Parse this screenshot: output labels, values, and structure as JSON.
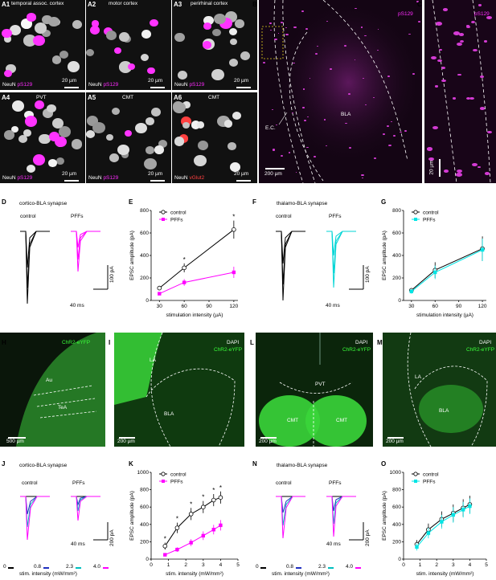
{
  "panel_letters": {
    "A1": "A1",
    "A2": "A2",
    "A3": "A3",
    "A4": "A4",
    "A5": "A5",
    "A6": "A6",
    "B": "B",
    "C": "C",
    "D": "D",
    "E": "E",
    "F": "F",
    "G": "G",
    "H": "H",
    "I": "I",
    "J": "J",
    "K": "K",
    "L": "L",
    "M": "M",
    "N": "N",
    "O": "O"
  },
  "row_a": {
    "a1_title": "temporal assoc. cortex",
    "a2_title": "motor cortex",
    "a3_title": "perirhinal cortex",
    "a4_title": "PVT",
    "a5_title": "CMT",
    "a6_title": "CMT",
    "neun": "NeuN",
    "ps129": "pS129",
    "vglut2": "vGlut2",
    "scale": "20 µm"
  },
  "panel_b": {
    "stain": "pS129",
    "bla": "BLA",
    "ec": "E.C.",
    "scale": "200 µm"
  },
  "panel_c": {
    "stain": "pS129",
    "scale": "20 µm"
  },
  "panel_d": {
    "title": "cortico-BLA synapse",
    "control": "control",
    "pffs": "PFFs",
    "scale_y": "100 pA",
    "scale_x": "40 ms"
  },
  "panel_f": {
    "title": "thalamo-BLA synapse",
    "control": "control",
    "pffs": "PFFs",
    "scale_y": "100 pA",
    "scale_x": "40 ms"
  },
  "panel_h": {
    "stain": "ChR2-eYFP",
    "au": "Au",
    "tea": "TeA",
    "scale": "500 µm"
  },
  "panel_i": {
    "dapi": "DAPI",
    "stain": "ChR2-eYFP",
    "la": "LA",
    "bla": "BLA",
    "scale": "200 µm"
  },
  "panel_l": {
    "dapi": "DAPI",
    "stain": "ChR2-eYFP",
    "pvt": "PVT",
    "cmt_l": "CMT",
    "cmt_r": "CMT",
    "scale": "200 µm"
  },
  "panel_m": {
    "dapi": "DAPI",
    "stain": "ChR2-eYFP",
    "la": "LA",
    "bla": "BLA",
    "scale": "200 µm"
  },
  "panel_j": {
    "title": "cortico-BLA synapse",
    "control": "control",
    "pffs": "PFFs",
    "scale_y": "200 pA",
    "scale_x": "40 ms",
    "legend": [
      "0",
      "0.8",
      "2.3",
      "4.0"
    ],
    "legend_label": "stim. intensity (mW/mm²)"
  },
  "panel_n": {
    "title": "thalamo-BLA synapse",
    "control": "control",
    "pffs": "PFFs",
    "scale_y": "200 pA",
    "scale_x": "40 ms",
    "legend": [
      "0",
      "0.8",
      "2.3",
      "4.0"
    ],
    "legend_label": "stim. intensity (mW/mm²)"
  },
  "colors": {
    "control": "#000000",
    "pffs_magenta": "#ff00ff",
    "pffs_cyan": "#00e5e5",
    "blue": "#1f2fbf",
    "teal": "#00bfbf",
    "green": "#1aa31a"
  },
  "chart_data": [
    {
      "id": "E",
      "type": "line",
      "xlabel": "stimulation intensity (µA)",
      "ylabel": "EPSC amplitude (pA)",
      "xticks": [
        "30",
        "60",
        "90",
        "120"
      ],
      "yticks": [
        "0",
        "200",
        "400",
        "600",
        "800"
      ],
      "xlim": [
        20,
        125
      ],
      "ylim": [
        0,
        800
      ],
      "series": [
        {
          "name": "control",
          "x": [
            30,
            60,
            120
          ],
          "y": [
            110,
            290,
            630
          ],
          "err": [
            10,
            40,
            80
          ]
        },
        {
          "name": "PFFs",
          "x": [
            30,
            60,
            120
          ],
          "y": [
            60,
            160,
            250
          ],
          "err": [
            10,
            30,
            50
          ]
        }
      ],
      "annotations": [
        "*",
        "*"
      ]
    },
    {
      "id": "G",
      "type": "line",
      "xlabel": "stimulation intensity (µA)",
      "ylabel": "EPSC amplitude (pA)",
      "xticks": [
        "30",
        "60",
        "90",
        "120"
      ],
      "yticks": [
        "0",
        "200",
        "400",
        "600",
        "800"
      ],
      "xlim": [
        20,
        125
      ],
      "ylim": [
        0,
        800
      ],
      "series": [
        {
          "name": "control",
          "x": [
            30,
            60,
            120
          ],
          "y": [
            90,
            270,
            460
          ],
          "err": [
            20,
            70,
            110
          ]
        },
        {
          "name": "PFFs",
          "x": [
            30,
            60,
            120
          ],
          "y": [
            80,
            250,
            450
          ],
          "err": [
            20,
            60,
            100
          ]
        }
      ]
    },
    {
      "id": "K",
      "type": "line",
      "xlabel": "stim. intensity (mW/mm²)",
      "ylabel": "EPSC amplitude (pA)",
      "xticks": [
        "0",
        "1",
        "2",
        "3",
        "4",
        "5"
      ],
      "yticks": [
        "0",
        "200",
        "400",
        "600",
        "800",
        "1000"
      ],
      "xlim": [
        0,
        5
      ],
      "ylim": [
        0,
        1000
      ],
      "series": [
        {
          "name": "control",
          "x": [
            0.8,
            1.5,
            2.3,
            3.0,
            3.6,
            4.0
          ],
          "y": [
            150,
            360,
            520,
            600,
            680,
            710
          ],
          "err": [
            40,
            60,
            70,
            70,
            70,
            70
          ]
        },
        {
          "name": "PFFs",
          "x": [
            0.8,
            1.5,
            2.3,
            3.0,
            3.6,
            4.0
          ],
          "y": [
            50,
            110,
            190,
            270,
            340,
            390
          ],
          "err": [
            15,
            25,
            40,
            50,
            55,
            60
          ]
        }
      ],
      "annotations": [
        "*",
        "*",
        "*",
        "*",
        "*",
        "*"
      ]
    },
    {
      "id": "O",
      "type": "line",
      "xlabel": "stim. intensity (mW/mm²)",
      "ylabel": "EPSC amplitude (pA)",
      "xticks": [
        "0",
        "1",
        "2",
        "3",
        "4",
        "5"
      ],
      "yticks": [
        "0",
        "200",
        "400",
        "600",
        "800",
        "1000"
      ],
      "xlim": [
        0,
        5
      ],
      "ylim": [
        0,
        1000
      ],
      "series": [
        {
          "name": "control",
          "x": [
            0.8,
            1.5,
            2.3,
            3.0,
            3.6,
            4.0
          ],
          "y": [
            170,
            340,
            460,
            530,
            590,
            630
          ],
          "err": [
            50,
            70,
            90,
            100,
            100,
            100
          ]
        },
        {
          "name": "PFFs",
          "x": [
            0.8,
            1.5,
            2.3,
            3.0,
            3.6,
            4.0
          ],
          "y": [
            140,
            300,
            430,
            510,
            570,
            610
          ],
          "err": [
            40,
            60,
            80,
            90,
            90,
            90
          ]
        }
      ]
    }
  ]
}
